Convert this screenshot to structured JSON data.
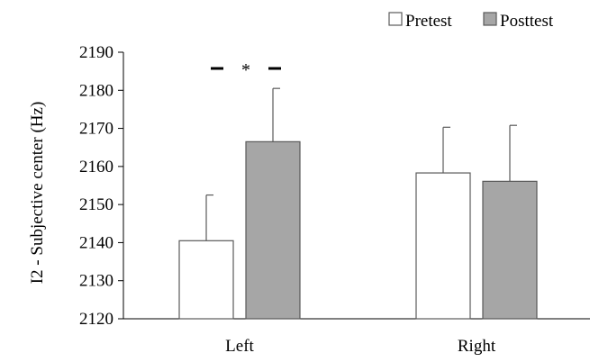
{
  "chart_data": {
    "type": "bar",
    "title": "",
    "xlabel": "",
    "ylabel": "I2 - Subjective center (Hz)",
    "ylim": [
      2120,
      2190
    ],
    "yticks": [
      2120,
      2130,
      2140,
      2150,
      2160,
      2170,
      2180,
      2190
    ],
    "categories": [
      "Left",
      "Right"
    ],
    "series": [
      {
        "name": "Pretest",
        "values": [
          2140.5,
          2158.3
        ],
        "error_upper": [
          12,
          12
        ],
        "color": "#ffffff"
      },
      {
        "name": "Posttest",
        "values": [
          2166.5,
          2156.1
        ],
        "error_upper": [
          14,
          14.7
        ],
        "color": "#a6a6a6"
      }
    ],
    "grid": false,
    "legend": "top-right",
    "annotations": [
      {
        "text": "*",
        "category": "Left",
        "type": "significance"
      }
    ]
  }
}
